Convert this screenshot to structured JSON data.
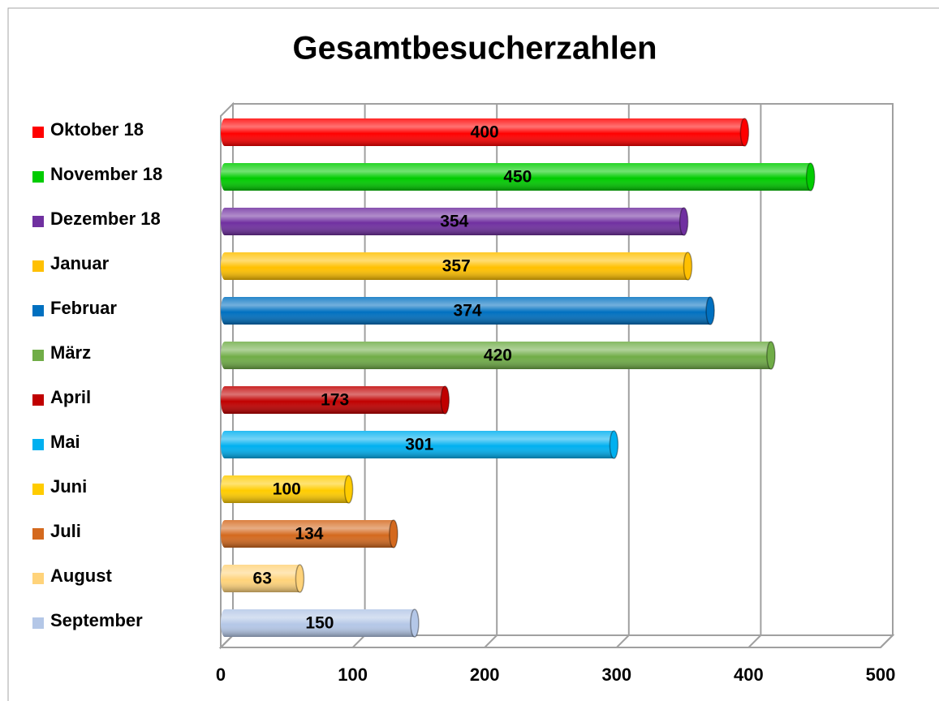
{
  "chart_data": {
    "type": "bar",
    "orientation": "horizontal",
    "title": "Gesamtbesucherzahlen",
    "categories": [
      "Oktober 18",
      "November 18",
      "Dezember 18",
      "Januar",
      "Februar",
      "März",
      "April",
      "Mai",
      "Juni",
      "Juli",
      "August",
      "September"
    ],
    "values": [
      400,
      450,
      354,
      357,
      374,
      420,
      173,
      301,
      100,
      134,
      63,
      150
    ],
    "colors": [
      "#ff0000",
      "#00cc00",
      "#7030a0",
      "#ffc000",
      "#0070c0",
      "#70ad47",
      "#c00000",
      "#00b0f0",
      "#ffcc00",
      "#d4691e",
      "#ffd37a",
      "#b4c7e7"
    ],
    "xlim": [
      0,
      500
    ],
    "xticks": [
      0,
      100,
      200,
      300,
      400,
      500
    ],
    "grid": true,
    "legend": "left"
  }
}
